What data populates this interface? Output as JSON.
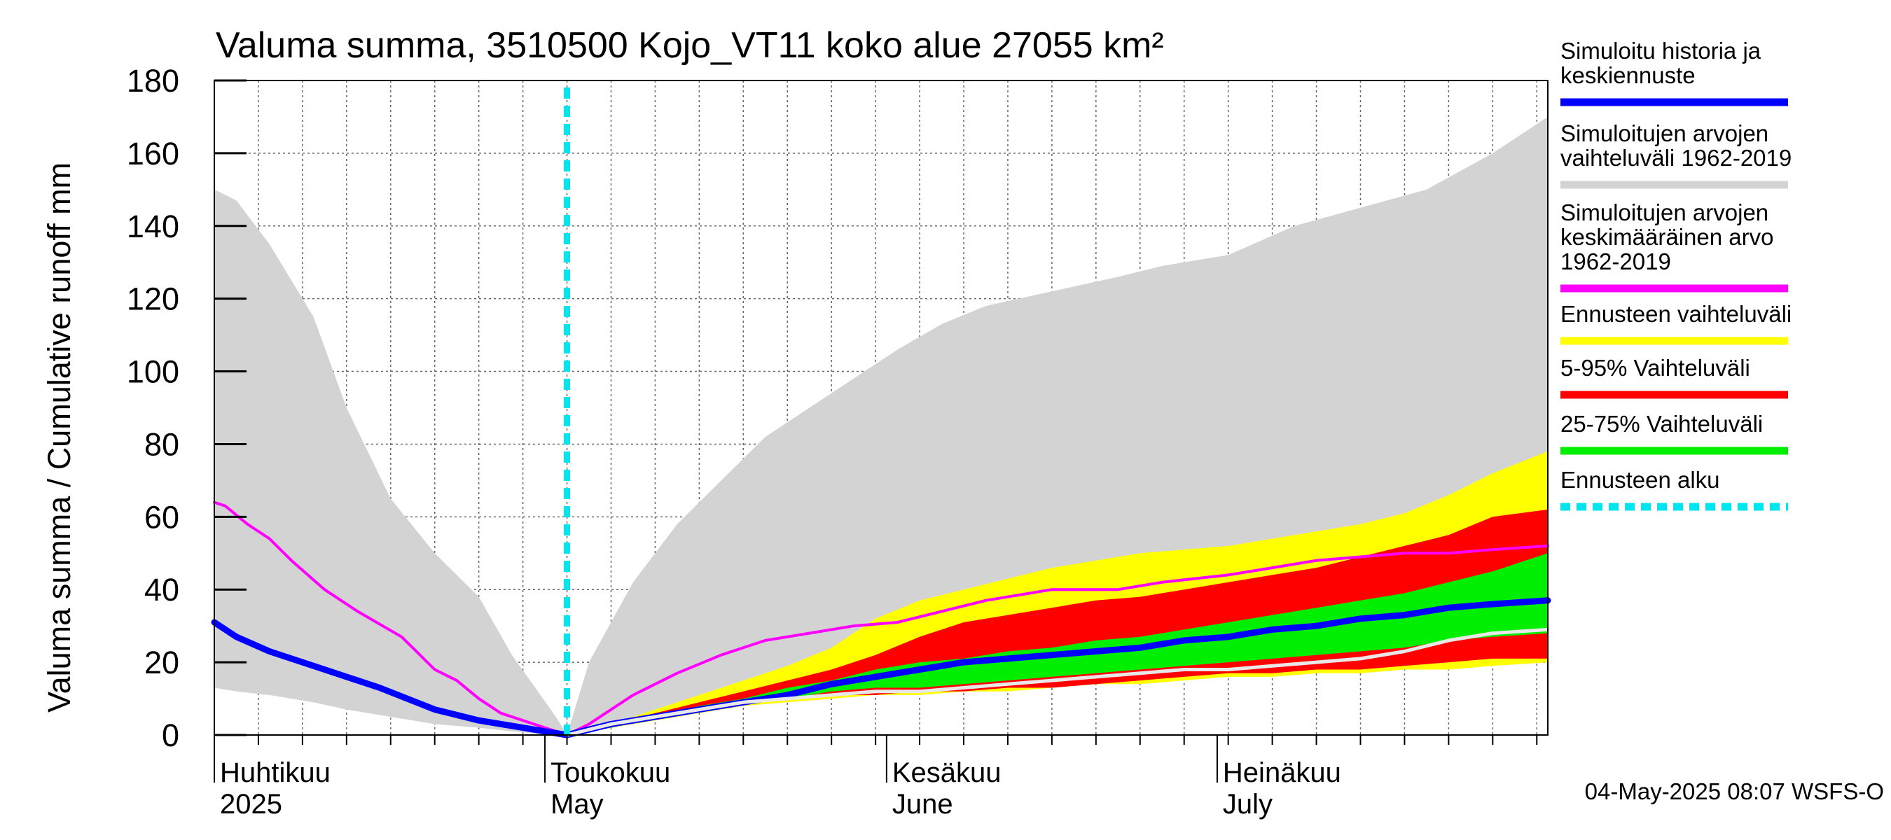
{
  "chart_data": {
    "type": "area",
    "title": "Valuma summa, 3510500 Kojo_VT11 koko alue 27055 km²",
    "ylabel": "Valuma summa / Cumulative runoff    mm",
    "ylim": [
      0,
      180
    ],
    "yticks": [
      0,
      20,
      40,
      60,
      80,
      100,
      120,
      140,
      160,
      180
    ],
    "xlim": [
      0,
      121
    ],
    "x_unit": "days since 2025-04-01",
    "forecast_start": 32,
    "months": [
      {
        "day": 0,
        "line1": "Huhtikuu",
        "line2": "2025"
      },
      {
        "day": 30,
        "line1": "Toukokuu",
        "line2": "May"
      },
      {
        "day": 61,
        "line1": "Kesäkuu",
        "line2": "June"
      },
      {
        "day": 91,
        "line1": "Heinäkuu",
        "line2": "July"
      }
    ],
    "series": [
      {
        "name": "Simuloitujen arvojen vaihteluväli 1962-2019",
        "kind": "band",
        "color": "#d3d3d3",
        "x": [
          0,
          2,
          5,
          9,
          12,
          16,
          20,
          24,
          27,
          31,
          32,
          34,
          38,
          42,
          46,
          50,
          54,
          58,
          62,
          66,
          70,
          76,
          82,
          86,
          92,
          98,
          104,
          110,
          116,
          121
        ],
        "upper": [
          150,
          147,
          135,
          115,
          90,
          65,
          50,
          38,
          22,
          5,
          0,
          20,
          42,
          58,
          70,
          82,
          90,
          98,
          106,
          113,
          118,
          122,
          126,
          129,
          132,
          140,
          145,
          150,
          160,
          170
        ],
        "lower": [
          13,
          12,
          11,
          9,
          7,
          5,
          3,
          2,
          1,
          0,
          0,
          2,
          5,
          7,
          9,
          10,
          11,
          12,
          13,
          14,
          15,
          16,
          17,
          17,
          18,
          19,
          20,
          21,
          21,
          22
        ]
      },
      {
        "name": "Ennusteen vaihteluväli",
        "kind": "band",
        "color": "#ffff00",
        "x": [
          32,
          36,
          40,
          44,
          48,
          52,
          56,
          60,
          64,
          68,
          72,
          76,
          80,
          84,
          88,
          92,
          96,
          100,
          104,
          108,
          112,
          116,
          121
        ],
        "upper": [
          0,
          3,
          7,
          11,
          15,
          19,
          24,
          32,
          37,
          40,
          43,
          46,
          48,
          50,
          51,
          52,
          54,
          56,
          58,
          61,
          66,
          72,
          78
        ],
        "lower": [
          0,
          2,
          4,
          6,
          8,
          9,
          10,
          11,
          11,
          12,
          12,
          13,
          14,
          14,
          15,
          16,
          16,
          17,
          17,
          18,
          18,
          19,
          20
        ]
      },
      {
        "name": "5-95% Vaihteluväli",
        "kind": "band",
        "color": "#ff0000",
        "x": [
          32,
          36,
          40,
          44,
          48,
          52,
          56,
          60,
          64,
          68,
          72,
          76,
          80,
          84,
          88,
          92,
          96,
          100,
          104,
          108,
          112,
          116,
          121
        ],
        "upper": [
          0,
          3,
          6,
          9,
          12,
          15,
          18,
          22,
          27,
          31,
          33,
          35,
          37,
          38,
          40,
          42,
          44,
          46,
          49,
          52,
          55,
          60,
          62
        ],
        "lower": [
          0,
          2,
          5,
          7,
          9,
          10,
          11,
          11,
          12,
          12,
          13,
          13,
          14,
          15,
          16,
          17,
          17,
          18,
          18,
          19,
          20,
          21,
          21
        ]
      },
      {
        "name": "25-75% Vaihteluväli",
        "kind": "band",
        "color": "#00ee00",
        "x": [
          32,
          36,
          40,
          44,
          48,
          52,
          56,
          60,
          64,
          68,
          72,
          76,
          80,
          84,
          88,
          92,
          96,
          100,
          104,
          108,
          112,
          116,
          121
        ],
        "upper": [
          0,
          3,
          5,
          8,
          10,
          13,
          15,
          18,
          20,
          21,
          23,
          24,
          26,
          27,
          29,
          31,
          33,
          35,
          37,
          39,
          42,
          45,
          50
        ],
        "lower": [
          0,
          2,
          5,
          7,
          9,
          10,
          12,
          13,
          13,
          14,
          15,
          16,
          17,
          18,
          19,
          20,
          21,
          22,
          23,
          24,
          26,
          27,
          28
        ]
      },
      {
        "name": "Simuloitujen arvojen keskimääräinen arvo 1962-2019",
        "kind": "line",
        "color": "#ff00ff",
        "x": [
          0,
          1,
          3,
          5,
          7,
          10,
          13,
          17,
          20,
          22,
          24,
          26,
          29,
          31,
          32,
          34,
          38,
          42,
          46,
          50,
          54,
          58,
          62,
          66,
          70,
          76,
          82,
          86,
          92,
          96,
          100,
          104,
          108,
          112,
          116,
          121
        ],
        "values": [
          64,
          63,
          58,
          54,
          48,
          40,
          34,
          27,
          18,
          15,
          10,
          6,
          3,
          1,
          0,
          3,
          11,
          17,
          22,
          26,
          28,
          30,
          31,
          34,
          37,
          40,
          40,
          42,
          44,
          46,
          48,
          49,
          50,
          50,
          51,
          52
        ]
      },
      {
        "name": "Simuloitu historia ja keskiennuste",
        "kind": "line",
        "color": "#0000ff",
        "x": [
          0,
          2,
          5,
          10,
          15,
          20,
          24,
          28,
          32,
          36,
          40,
          44,
          48,
          52,
          56,
          60,
          64,
          68,
          72,
          76,
          80,
          84,
          88,
          92,
          96,
          100,
          104,
          108,
          112,
          116,
          121
        ],
        "values": [
          31,
          27,
          23,
          18,
          13,
          7,
          4,
          2,
          0,
          3,
          5,
          7,
          9,
          11,
          14,
          16,
          18,
          20,
          21,
          22,
          23,
          24,
          26,
          27,
          29,
          30,
          32,
          33,
          35,
          36,
          37
        ]
      },
      {
        "name": "Forecast lower band edge",
        "kind": "line",
        "color": "#e8e8e8",
        "x": [
          32,
          36,
          40,
          44,
          48,
          52,
          56,
          60,
          64,
          68,
          72,
          76,
          80,
          84,
          88,
          92,
          96,
          100,
          104,
          108,
          112,
          116,
          121
        ],
        "values": [
          0,
          3,
          5,
          7,
          9,
          10,
          11,
          12,
          12,
          13,
          14,
          15,
          16,
          17,
          18,
          18,
          19,
          20,
          21,
          23,
          26,
          28,
          29
        ]
      }
    ]
  },
  "legend": {
    "items": [
      {
        "lines": [
          "Simuloitu historia ja",
          "keskiennuste"
        ],
        "color": "#0000ff",
        "style": "solid"
      },
      {
        "lines": [
          "Simuloitujen arvojen",
          "vaihteluväli 1962-2019"
        ],
        "color": "#d3d3d3",
        "style": "solid"
      },
      {
        "lines": [
          "Simuloitujen arvojen",
          "keskimääräinen arvo",
          "   1962-2019"
        ],
        "color": "#ff00ff",
        "style": "solid"
      },
      {
        "lines": [
          "Ennusteen vaihteluväli"
        ],
        "color": "#ffff00",
        "style": "solid"
      },
      {
        "lines": [
          "5-95% Vaihteluväli"
        ],
        "color": "#ff0000",
        "style": "solid"
      },
      {
        "lines": [
          "25-75% Vaihteluväli"
        ],
        "color": "#00ee00",
        "style": "solid"
      },
      {
        "lines": [
          "Ennusteen alku"
        ],
        "color": "#00e5ee",
        "style": "dashed"
      }
    ]
  },
  "footer": {
    "timestamp": "04-May-2025 08:07 WSFS-O"
  },
  "colors": {
    "forecast_start_line": "#00e5ee",
    "grid": "#666666"
  }
}
